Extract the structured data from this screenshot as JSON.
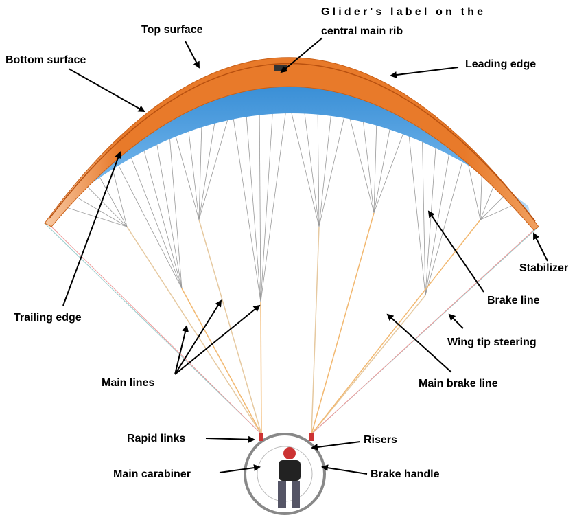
{
  "labels": [
    {
      "text": "Top surface"
    },
    {
      "lines": [
        "Glider's label on the",
        "central main rib"
      ]
    },
    {
      "text": "Bottom surface"
    },
    {
      "text": "Leading edge"
    },
    {
      "text": "Stabilizer"
    },
    {
      "text": "Brake line"
    },
    {
      "text": "Trailing edge"
    },
    {
      "text": "Wing tip steering"
    },
    {
      "text": "Main lines"
    },
    {
      "text": "Main brake line"
    },
    {
      "text": "Rapid links"
    },
    {
      "text": "Risers"
    },
    {
      "text": "Main carabiner"
    },
    {
      "text": "Brake handle"
    }
  ]
}
